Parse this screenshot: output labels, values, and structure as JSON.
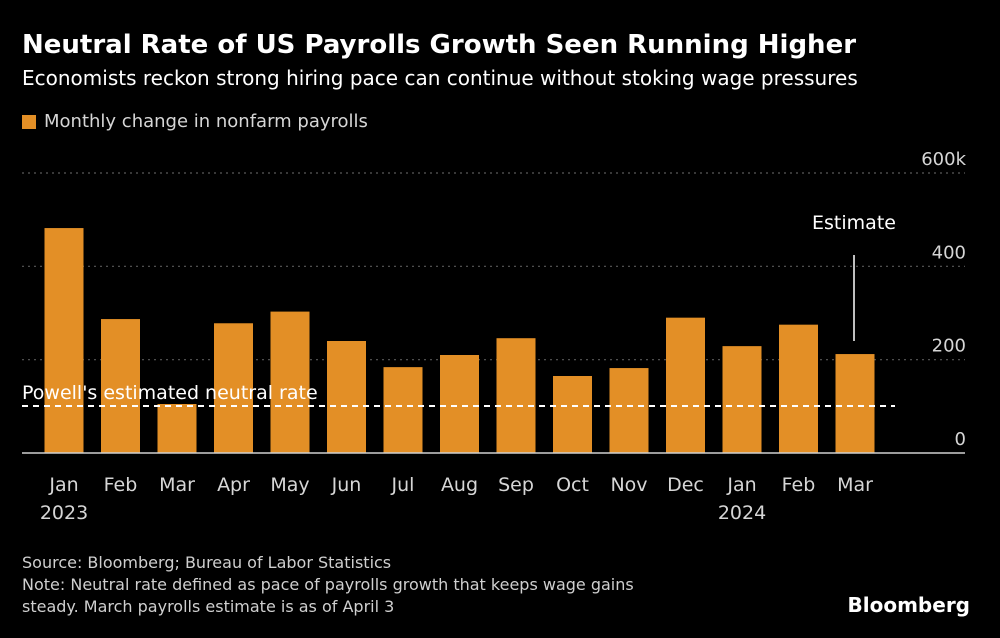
{
  "title": "Neutral Rate of US Payrolls Growth Seen Running Higher",
  "subtitle": "Economists reckon strong hiring pace can continue without stoking wage pressures",
  "legend": {
    "label": "Monthly change in nonfarm payrolls",
    "color": "#e38f26"
  },
  "annotations": {
    "neutral_label": "Powell's estimated neutral rate",
    "estimate_label": "Estimate"
  },
  "footer": {
    "source": "Source: Bloomberg; Bureau of Labor Statistics",
    "note_line1": "Note: Neutral rate defined as pace of payrolls growth that keeps wage gains",
    "note_line2": "steady. March payrolls estimate is as of April 3",
    "brand": "Bloomberg"
  },
  "chart_data": {
    "type": "bar",
    "title": "Neutral Rate of US Payrolls Growth Seen Running Higher",
    "categories": [
      "Jan",
      "Feb",
      "Mar",
      "Apr",
      "May",
      "Jun",
      "Jul",
      "Aug",
      "Sep",
      "Oct",
      "Nov",
      "Dec",
      "Jan",
      "Feb",
      "Mar"
    ],
    "year_labels": [
      {
        "index": 0,
        "label": "2023"
      },
      {
        "index": 12,
        "label": "2024"
      }
    ],
    "series": [
      {
        "name": "Monthly change in nonfarm payrolls",
        "values": [
          482,
          287,
          105,
          278,
          303,
          240,
          184,
          210,
          246,
          165,
          182,
          290,
          229,
          275,
          212
        ]
      }
    ],
    "neutral_rate": 100,
    "estimate_index": 14,
    "y_ticks": [
      0,
      200,
      400,
      600
    ],
    "y_tick_labels": [
      "0",
      "200",
      "400",
      "600k"
    ],
    "ylim": [
      0,
      600
    ],
    "xlabel": "",
    "ylabel": "",
    "colors": {
      "bar": "#e38f26",
      "grid": "#5a5a5a",
      "text": "#d6d6d6",
      "neutral_line": "#ffffff"
    }
  }
}
